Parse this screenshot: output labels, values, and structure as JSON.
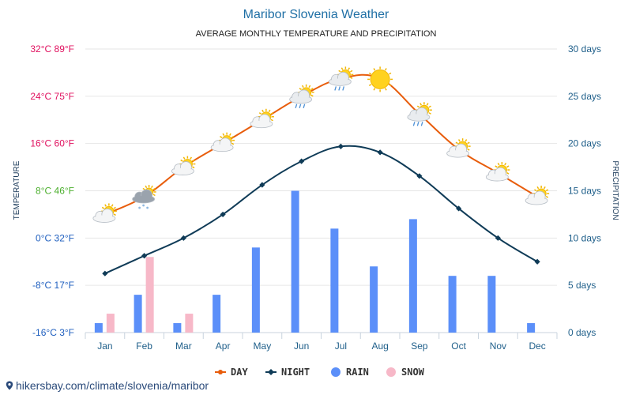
{
  "chart_data": {
    "type": "line",
    "title": "Maribor Slovenia Weather",
    "subtitle": "AVERAGE MONTHLY TEMPERATURE AND PRECIPITATION",
    "ylabel_left": "TEMPERATURE",
    "ylabel_right": "PRECIPITATION",
    "categories": [
      "Jan",
      "Feb",
      "Mar",
      "Apr",
      "May",
      "Jun",
      "Jul",
      "Aug",
      "Sep",
      "Oct",
      "Nov",
      "Dec"
    ],
    "temperature_axis": {
      "range_c": [
        -16,
        32
      ],
      "ticks": [
        {
          "c": 32,
          "label": "32°C 89°F",
          "color": "#e0115f"
        },
        {
          "c": 24,
          "label": "24°C 75°F",
          "color": "#e0115f"
        },
        {
          "c": 16,
          "label": "16°C 60°F",
          "color": "#e0115f"
        },
        {
          "c": 8,
          "label": "8°C 46°F",
          "color": "#4caf2e"
        },
        {
          "c": 0,
          "label": "0°C 32°F",
          "color": "#1f5fbf"
        },
        {
          "c": -8,
          "label": "-8°C 17°F",
          "color": "#1f5fbf"
        },
        {
          "c": -16,
          "label": "-16°C 3°F",
          "color": "#1f5fbf"
        }
      ]
    },
    "precipitation_axis": {
      "range_days": [
        0,
        30
      ],
      "ticks": [
        {
          "v": 30,
          "label": "30 days"
        },
        {
          "v": 25,
          "label": "25 days"
        },
        {
          "v": 20,
          "label": "20 days"
        },
        {
          "v": 15,
          "label": "15 days"
        },
        {
          "v": 10,
          "label": "10 days"
        },
        {
          "v": 5,
          "label": "5 days"
        },
        {
          "v": 0,
          "label": "0 days"
        }
      ]
    },
    "series": [
      {
        "name": "DAY",
        "color": "#e85d0c",
        "axis": "temperature",
        "values": [
          4,
          7,
          12,
          16,
          20,
          24,
          27,
          27,
          21,
          15,
          11,
          7
        ]
      },
      {
        "name": "NIGHT",
        "color": "#0f3b57",
        "axis": "temperature",
        "values": [
          -6,
          -3,
          0,
          4,
          9,
          13,
          15.5,
          14.5,
          10.5,
          5,
          0,
          -4
        ]
      },
      {
        "name": "RAIN",
        "color": "#5b8ff9",
        "axis": "precipitation",
        "values": [
          1,
          4,
          1,
          4,
          9,
          15,
          11,
          7,
          12,
          6,
          6,
          1
        ]
      },
      {
        "name": "SNOW",
        "color": "#f7b8c8",
        "axis": "precipitation",
        "values": [
          2,
          8,
          2,
          0,
          0,
          0,
          0,
          0,
          0,
          0,
          0,
          0
        ]
      }
    ],
    "weather_icons": [
      "partly-cloudy-icon",
      "snow-cloud-icon",
      "partly-cloudy-icon",
      "partly-cloudy-icon",
      "partly-cloudy-icon",
      "rain-cloud-icon",
      "rain-cloud-icon",
      "sun-icon",
      "rain-cloud-icon",
      "partly-cloudy-icon",
      "partly-cloudy-icon",
      "partly-cloudy-icon"
    ],
    "grid": true,
    "legend_position": "bottom-center",
    "right_axis_color": "#1f5f8a"
  },
  "footer": {
    "url": "hikersbay.com/climate/slovenia/maribor"
  }
}
